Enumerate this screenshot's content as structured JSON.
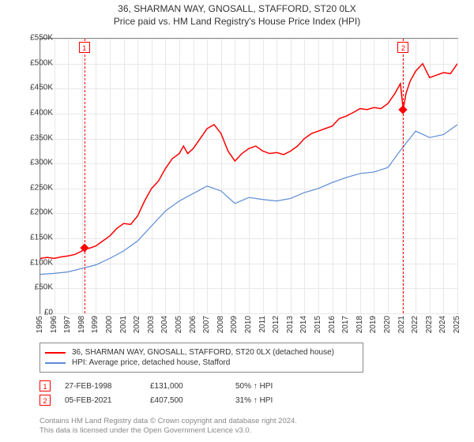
{
  "title_line1": "36, SHARMAN WAY, GNOSALL, STAFFORD, ST20 0LX",
  "title_line2": "Price paid vs. HM Land Registry's House Price Index (HPI)",
  "chart": {
    "type": "line",
    "background_color": "#ffffff",
    "grid_color": "#e8e8e8",
    "axis_color": "#888888",
    "label_fontsize": 10,
    "x": {
      "min": 1995,
      "max": 2025,
      "step": 1,
      "labels": [
        "1995",
        "1996",
        "1997",
        "1998",
        "1999",
        "2000",
        "2001",
        "2002",
        "2003",
        "2004",
        "2005",
        "2006",
        "2007",
        "2008",
        "2009",
        "2010",
        "2011",
        "2012",
        "2013",
        "2014",
        "2015",
        "2016",
        "2017",
        "2018",
        "2019",
        "2020",
        "2021",
        "2022",
        "2023",
        "2024",
        "2025"
      ]
    },
    "y": {
      "min": 0,
      "max": 550000,
      "step": 50000,
      "prefix": "£",
      "suffix": "K",
      "labels": [
        "£0",
        "£50K",
        "£100K",
        "£150K",
        "£200K",
        "£250K",
        "£300K",
        "£350K",
        "£400K",
        "£450K",
        "£500K",
        "£550K"
      ]
    },
    "series": [
      {
        "name": "36, SHARMAN WAY, GNOSALL, STAFFORD, ST20 0LX (detached house)",
        "color": "#ff0000",
        "width": 1.5,
        "points": [
          [
            1995,
            110000
          ],
          [
            1995.5,
            112000
          ],
          [
            1996,
            110000
          ],
          [
            1996.5,
            113000
          ],
          [
            1997,
            115000
          ],
          [
            1997.5,
            118000
          ],
          [
            1998,
            125000
          ],
          [
            1998.17,
            131000
          ],
          [
            1998.5,
            130000
          ],
          [
            1999,
            135000
          ],
          [
            1999.5,
            145000
          ],
          [
            2000,
            155000
          ],
          [
            2000.5,
            170000
          ],
          [
            2001,
            180000
          ],
          [
            2001.5,
            178000
          ],
          [
            2002,
            195000
          ],
          [
            2002.5,
            225000
          ],
          [
            2003,
            250000
          ],
          [
            2003.5,
            265000
          ],
          [
            2004,
            290000
          ],
          [
            2004.5,
            310000
          ],
          [
            2005,
            320000
          ],
          [
            2005.3,
            335000
          ],
          [
            2005.6,
            320000
          ],
          [
            2006,
            330000
          ],
          [
            2006.5,
            350000
          ],
          [
            2007,
            370000
          ],
          [
            2007.5,
            378000
          ],
          [
            2008,
            360000
          ],
          [
            2008.5,
            325000
          ],
          [
            2009,
            305000
          ],
          [
            2009.5,
            320000
          ],
          [
            2010,
            330000
          ],
          [
            2010.5,
            335000
          ],
          [
            2011,
            325000
          ],
          [
            2011.5,
            320000
          ],
          [
            2012,
            322000
          ],
          [
            2012.5,
            318000
          ],
          [
            2013,
            325000
          ],
          [
            2013.5,
            335000
          ],
          [
            2014,
            350000
          ],
          [
            2014.5,
            360000
          ],
          [
            2015,
            365000
          ],
          [
            2015.5,
            370000
          ],
          [
            2016,
            375000
          ],
          [
            2016.5,
            390000
          ],
          [
            2017,
            395000
          ],
          [
            2017.5,
            402000
          ],
          [
            2018,
            410000
          ],
          [
            2018.5,
            408000
          ],
          [
            2019,
            412000
          ],
          [
            2019.5,
            410000
          ],
          [
            2020,
            420000
          ],
          [
            2020.5,
            440000
          ],
          [
            2020.9,
            460000
          ],
          [
            2021.1,
            407500
          ],
          [
            2021.3,
            440000
          ],
          [
            2021.6,
            465000
          ],
          [
            2022,
            485000
          ],
          [
            2022.5,
            500000
          ],
          [
            2023,
            472000
          ],
          [
            2023.5,
            477000
          ],
          [
            2024,
            482000
          ],
          [
            2024.5,
            480000
          ],
          [
            2025,
            500000
          ]
        ]
      },
      {
        "name": "HPI: Average price, detached house, Stafford",
        "color": "#5b8bd4",
        "width": 1.2,
        "points": [
          [
            1995,
            78000
          ],
          [
            1996,
            80000
          ],
          [
            1997,
            83000
          ],
          [
            1998,
            90000
          ],
          [
            1999,
            97000
          ],
          [
            2000,
            110000
          ],
          [
            2001,
            125000
          ],
          [
            2002,
            145000
          ],
          [
            2003,
            175000
          ],
          [
            2004,
            205000
          ],
          [
            2005,
            225000
          ],
          [
            2006,
            240000
          ],
          [
            2007,
            255000
          ],
          [
            2008,
            245000
          ],
          [
            2009,
            220000
          ],
          [
            2010,
            232000
          ],
          [
            2011,
            228000
          ],
          [
            2012,
            225000
          ],
          [
            2013,
            230000
          ],
          [
            2014,
            242000
          ],
          [
            2015,
            250000
          ],
          [
            2016,
            262000
          ],
          [
            2017,
            272000
          ],
          [
            2018,
            280000
          ],
          [
            2019,
            283000
          ],
          [
            2020,
            292000
          ],
          [
            2021,
            330000
          ],
          [
            2022,
            365000
          ],
          [
            2023,
            352000
          ],
          [
            2024,
            358000
          ],
          [
            2025,
            378000
          ]
        ]
      }
    ],
    "markers": [
      {
        "num": "1",
        "x": 1998.17,
        "y": 131000
      },
      {
        "num": "2",
        "x": 2021.1,
        "y": 407500
      }
    ]
  },
  "legend": [
    {
      "color": "#ff0000",
      "label": "36, SHARMAN WAY, GNOSALL, STAFFORD, ST20 0LX (detached house)"
    },
    {
      "color": "#5b8bd4",
      "label": "HPI: Average price, detached house, Stafford"
    }
  ],
  "events": [
    {
      "num": "1",
      "date": "27-FEB-1998",
      "price": "£131,000",
      "delta": "50% ↑ HPI"
    },
    {
      "num": "2",
      "date": "05-FEB-2021",
      "price": "£407,500",
      "delta": "31% ↑ HPI"
    }
  ],
  "footer_line1": "Contains HM Land Registry data © Crown copyright and database right 2024.",
  "footer_line2": "This data is licensed under the Open Government Licence v3.0."
}
